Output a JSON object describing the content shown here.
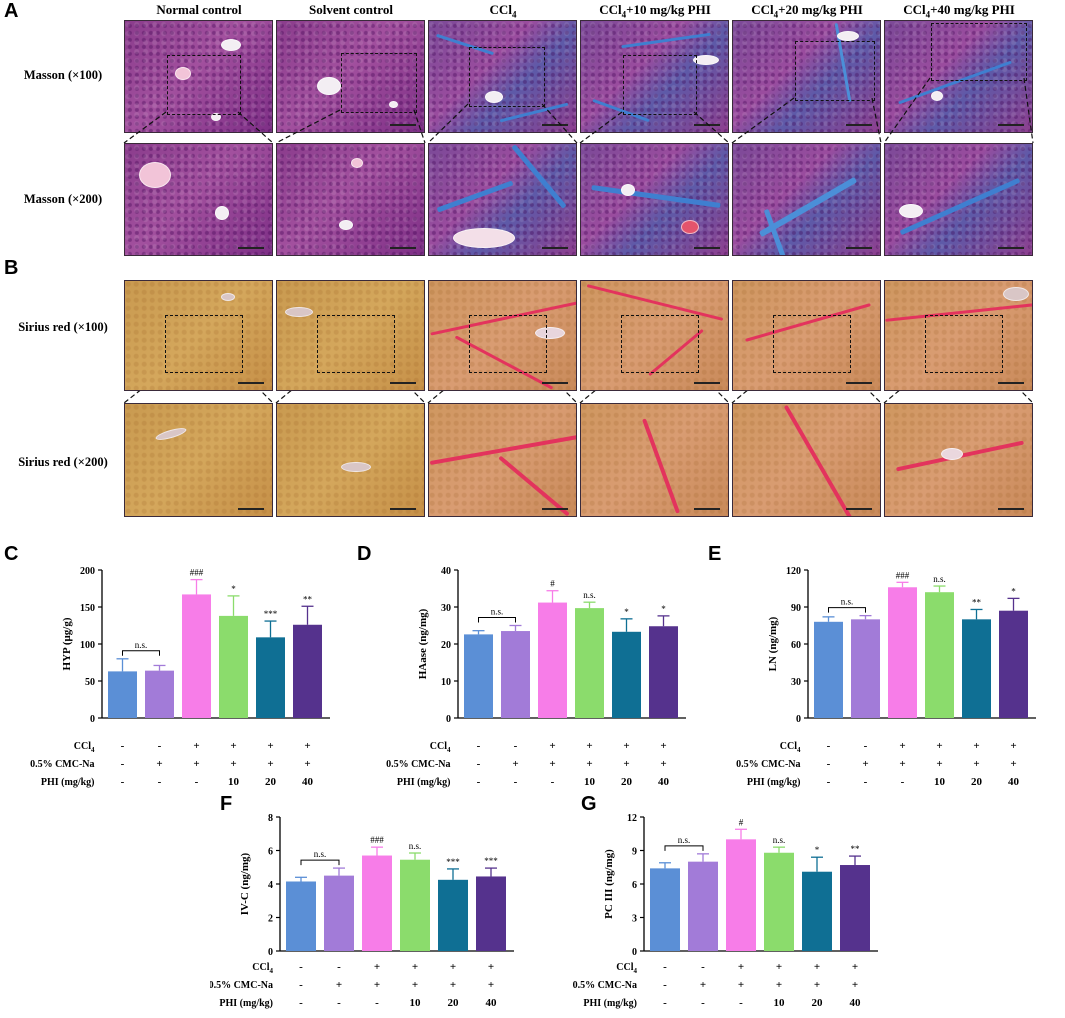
{
  "panels": {
    "A": "A",
    "B": "B",
    "C": "C",
    "D": "D",
    "E": "E",
    "F": "F",
    "G": "G"
  },
  "columns": [
    "Normal control",
    "Solvent control",
    "CCl4",
    "CCl4+10 mg/kg PHI",
    "CCl4+20 mg/kg PHI",
    "CCl4+40 mg/kg PHI"
  ],
  "row_labels": {
    "masson100": "Masson (×100)",
    "masson200": "Masson (×200)",
    "sirius100": "Sirius red (×100)",
    "sirius200": "Sirius red (×200)"
  },
  "colors": {
    "normal": "#5b8fd6",
    "solvent": "#a27bd8",
    "ccl4": "#f77de8",
    "phi10": "#8bdc6c",
    "phi20": "#0f6f94",
    "phi40": "#55328d"
  },
  "chart_data": [
    {
      "panel": "C",
      "type": "bar",
      "ylabel": "HYP (μg/g)",
      "ylim": [
        0,
        200
      ],
      "ticks": [
        0,
        50,
        100,
        150,
        200
      ],
      "values": [
        63,
        64,
        167,
        138,
        109,
        126
      ],
      "errors": [
        17,
        7,
        20,
        27,
        22,
        25
      ],
      "annotations": [
        "",
        "",
        "###",
        "*",
        "***",
        "**"
      ],
      "bracket_label": "n.s."
    },
    {
      "panel": "D",
      "type": "bar",
      "ylabel": "HAase (ng/mg)",
      "ylim": [
        0,
        40
      ],
      "ticks": [
        0,
        10,
        20,
        30,
        40
      ],
      "values": [
        22.6,
        23.5,
        31.2,
        29.7,
        23.3,
        24.8
      ],
      "errors": [
        1.0,
        1.5,
        3.2,
        1.6,
        3.5,
        2.8
      ],
      "annotations": [
        "",
        "",
        "#",
        "n.s.",
        "*",
        "*"
      ],
      "bracket_label": "n.s."
    },
    {
      "panel": "E",
      "type": "bar",
      "ylabel": "LN (ng/mg)",
      "ylim": [
        0,
        120
      ],
      "ticks": [
        0,
        30,
        60,
        90,
        120
      ],
      "values": [
        78,
        80,
        106,
        102,
        80,
        87
      ],
      "errors": [
        4,
        3,
        4,
        5,
        8,
        10
      ],
      "annotations": [
        "",
        "",
        "###",
        "n.s.",
        "**",
        "*"
      ],
      "bracket_label": "n.s."
    },
    {
      "panel": "F",
      "type": "bar",
      "ylabel": "IV-C (ng/mg)",
      "ylim": [
        0,
        8
      ],
      "ticks": [
        0,
        2,
        4,
        6,
        8
      ],
      "values": [
        4.15,
        4.5,
        5.7,
        5.45,
        4.25,
        4.45
      ],
      "errors": [
        0.25,
        0.45,
        0.5,
        0.4,
        0.65,
        0.5
      ],
      "annotations": [
        "",
        "",
        "###",
        "n.s.",
        "***",
        "***"
      ],
      "bracket_label": "n.s."
    },
    {
      "panel": "G",
      "type": "bar",
      "ylabel": "PC III (ng/mg)",
      "ylim": [
        0,
        12
      ],
      "ticks": [
        0,
        3,
        6,
        9,
        12
      ],
      "values": [
        7.4,
        8.0,
        10.0,
        8.8,
        7.1,
        7.7
      ],
      "errors": [
        0.5,
        0.7,
        0.9,
        0.5,
        1.3,
        0.8
      ],
      "annotations": [
        "",
        "",
        "#",
        "n.s.",
        "*",
        "**"
      ],
      "bracket_label": "n.s."
    }
  ],
  "conditions": {
    "labels": [
      "CCl4",
      "0.5% CMC-Na",
      "PHI (mg/kg)"
    ],
    "rows": [
      [
        "-",
        "-",
        "+",
        "+",
        "+",
        "+"
      ],
      [
        "-",
        "+",
        "+",
        "+",
        "+",
        "+"
      ],
      [
        "-",
        "-",
        "-",
        "10",
        "20",
        "40"
      ]
    ]
  }
}
